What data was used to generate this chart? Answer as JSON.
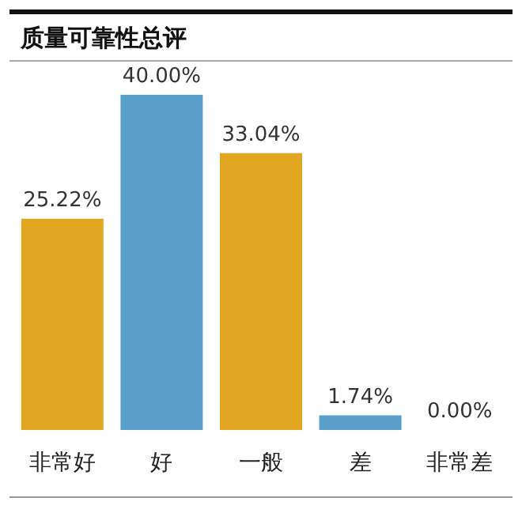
{
  "chart_data": {
    "type": "bar",
    "title": "质量可靠性总评",
    "categories": [
      "非常好",
      "好",
      "一般",
      "差",
      "非常差"
    ],
    "values": [
      25.22,
      40.0,
      33.04,
      1.74,
      0.0
    ],
    "colors": [
      "#e2a622",
      "#5a9fca",
      "#e2a622",
      "#5a9fca",
      "#5a9fca"
    ],
    "value_labels": [
      "25.22%",
      "40.00%",
      "33.04%",
      "1.74%",
      "0.00%"
    ]
  }
}
